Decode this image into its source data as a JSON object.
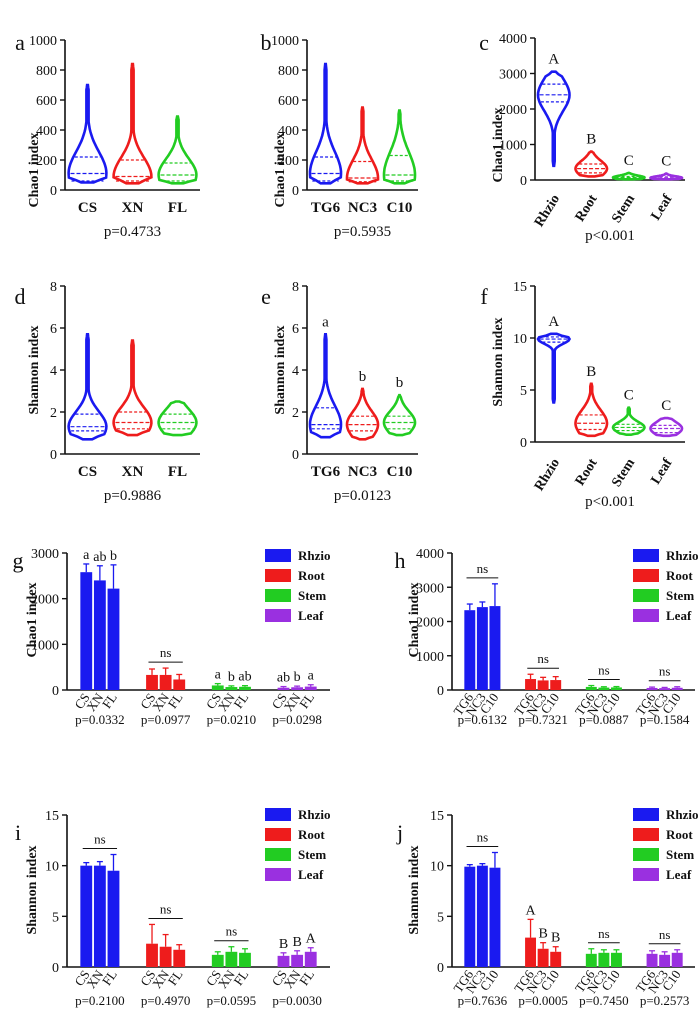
{
  "colors": {
    "blue": "#1a1af0",
    "red": "#ee1c1c",
    "green": "#22cc22",
    "purple": "#9a30e0",
    "axis": "#111111"
  },
  "chart_data": [
    {
      "id": "a",
      "panel_label": "a",
      "type": "violin",
      "ylabel": "Chao1 index",
      "ylim": [
        0,
        1000
      ],
      "yticks": [
        "0",
        "200",
        "400",
        "600",
        "800",
        "1000"
      ],
      "categories": [
        "CS",
        "XN",
        "FL"
      ],
      "colors": [
        "#1a1af0",
        "#ee1c1c",
        "#22cc22"
      ],
      "groups": [
        {
          "min": 50,
          "q1": 60,
          "median": 110,
          "q3": 220,
          "max": 700
        },
        {
          "min": 45,
          "q1": 60,
          "median": 90,
          "q3": 200,
          "max": 840
        },
        {
          "min": 45,
          "q1": 60,
          "median": 100,
          "q3": 180,
          "max": 490
        }
      ],
      "letters": [
        "",
        "",
        ""
      ],
      "pvalue": "p=0.4733",
      "rotate": false
    },
    {
      "id": "b",
      "panel_label": "b",
      "type": "violin",
      "ylabel": "Chao1 index",
      "ylim": [
        0,
        1000
      ],
      "yticks": [
        "0",
        "200",
        "400",
        "600",
        "800",
        "1000"
      ],
      "categories": [
        "TG6",
        "NC3",
        "C10"
      ],
      "colors": [
        "#1a1af0",
        "#ee1c1c",
        "#22cc22"
      ],
      "groups": [
        {
          "min": 45,
          "q1": 60,
          "median": 110,
          "q3": 220,
          "max": 840
        },
        {
          "min": 45,
          "q1": 55,
          "median": 80,
          "q3": 190,
          "max": 550
        },
        {
          "min": 45,
          "q1": 60,
          "median": 100,
          "q3": 230,
          "max": 530
        }
      ],
      "letters": [
        "",
        "",
        ""
      ],
      "pvalue": "p=0.5935",
      "rotate": false
    },
    {
      "id": "c",
      "panel_label": "c",
      "type": "violin",
      "ylabel": "Chao1 index",
      "ylim": [
        0,
        4000
      ],
      "yticks": [
        "0",
        "1000",
        "2000",
        "3000",
        "4000"
      ],
      "categories": [
        "Rhzio",
        "Root",
        "Stem",
        "Leaf"
      ],
      "colors": [
        "#1a1af0",
        "#ee1c1c",
        "#22cc22",
        "#9a30e0"
      ],
      "groups": [
        {
          "min": 400,
          "q1": 2200,
          "median": 2400,
          "q3": 2700,
          "max": 3050
        },
        {
          "min": 100,
          "q1": 200,
          "median": 320,
          "q3": 450,
          "max": 800
        },
        {
          "min": 20,
          "q1": 40,
          "median": 70,
          "q3": 100,
          "max": 200
        },
        {
          "min": 20,
          "q1": 40,
          "median": 60,
          "q3": 90,
          "max": 180
        }
      ],
      "letters": [
        "A",
        "B",
        "C",
        "C"
      ],
      "pvalue": "p<0.001",
      "rotate": true
    },
    {
      "id": "d",
      "panel_label": "d",
      "type": "violin",
      "ylabel": "Shannon index",
      "ylim": [
        0,
        8
      ],
      "yticks": [
        "0",
        "2",
        "4",
        "6",
        "8"
      ],
      "categories": [
        "CS",
        "XN",
        "FL"
      ],
      "colors": [
        "#1a1af0",
        "#ee1c1c",
        "#22cc22"
      ],
      "groups": [
        {
          "min": 0.7,
          "q1": 1.1,
          "median": 1.3,
          "q3": 1.9,
          "max": 5.7
        },
        {
          "min": 0.9,
          "q1": 1.2,
          "median": 1.5,
          "q3": 2.0,
          "max": 5.4
        },
        {
          "min": 0.9,
          "q1": 1.2,
          "median": 1.5,
          "q3": 1.9,
          "max": 2.5
        }
      ],
      "letters": [
        "",
        "",
        ""
      ],
      "pvalue": "p=0.9886",
      "rotate": false
    },
    {
      "id": "e",
      "panel_label": "e",
      "type": "violin",
      "ylabel": "Shannon index",
      "ylim": [
        0,
        8
      ],
      "yticks": [
        "0",
        "2",
        "4",
        "6",
        "8"
      ],
      "categories": [
        "TG6",
        "NC3",
        "C10"
      ],
      "colors": [
        "#1a1af0",
        "#ee1c1c",
        "#22cc22"
      ],
      "groups": [
        {
          "min": 0.8,
          "q1": 1.2,
          "median": 1.4,
          "q3": 2.2,
          "max": 5.7
        },
        {
          "min": 0.7,
          "q1": 1.1,
          "median": 1.4,
          "q3": 1.8,
          "max": 3.1
        },
        {
          "min": 0.9,
          "q1": 1.2,
          "median": 1.5,
          "q3": 1.8,
          "max": 2.8
        }
      ],
      "letters": [
        "a",
        "b",
        "b"
      ],
      "pvalue": "p=0.0123",
      "rotate": false
    },
    {
      "id": "f",
      "panel_label": "f",
      "type": "violin",
      "ylabel": "Shannon index",
      "ylim": [
        0,
        15
      ],
      "yticks": [
        "0",
        "5",
        "10",
        "15"
      ],
      "categories": [
        "Rhzio",
        "Root",
        "Stem",
        "Leaf"
      ],
      "colors": [
        "#1a1af0",
        "#ee1c1c",
        "#22cc22",
        "#9a30e0"
      ],
      "groups": [
        {
          "min": 3.8,
          "q1": 9.6,
          "median": 9.9,
          "q3": 10.1,
          "max": 10.4
        },
        {
          "min": 0.6,
          "q1": 1.2,
          "median": 1.8,
          "q3": 2.6,
          "max": 5.6
        },
        {
          "min": 0.7,
          "q1": 1.1,
          "median": 1.4,
          "q3": 1.7,
          "max": 3.3
        },
        {
          "min": 0.6,
          "q1": 0.9,
          "median": 1.3,
          "q3": 1.6,
          "max": 2.3
        }
      ],
      "letters": [
        "A",
        "B",
        "C",
        "C"
      ],
      "pvalue": "p<0.001",
      "rotate": true
    },
    {
      "id": "g",
      "panel_label": "g",
      "type": "bar",
      "ylabel": "Chao1 index",
      "ylim": [
        0,
        3000
      ],
      "yticks": [
        "0",
        "1000",
        "2000",
        "3000"
      ],
      "groups": [
        {
          "labels": [
            "CS",
            "XN",
            "FL"
          ],
          "values": [
            2580,
            2400,
            2220
          ],
          "errors": [
            180,
            320,
            520
          ],
          "letters": [
            "a",
            "ab",
            "b"
          ],
          "pvalue": "p=0.0332"
        },
        {
          "labels": [
            "CS",
            "XN",
            "FL"
          ],
          "values": [
            330,
            330,
            230
          ],
          "errors": [
            130,
            150,
            110
          ],
          "letters": [
            "ns"
          ],
          "pvalue": "p=0.0977"
        },
        {
          "labels": [
            "CS",
            "XN",
            "FL"
          ],
          "values": [
            100,
            65,
            70
          ],
          "errors": [
            40,
            25,
            25
          ],
          "letters": [
            "a",
            "b",
            "ab"
          ],
          "pvalue": "p=0.0210"
        },
        {
          "labels": [
            "CS",
            "XN",
            "FL"
          ],
          "values": [
            50,
            60,
            75
          ],
          "errors": [
            25,
            25,
            40
          ],
          "letters": [
            "ab",
            "b",
            "a"
          ],
          "pvalue": "p=0.0298"
        }
      ],
      "legend": [
        "Rhzio",
        "Root",
        "Stem",
        "Leaf"
      ],
      "legend_colors": [
        "#1a1af0",
        "#ee1c1c",
        "#22cc22",
        "#9a30e0"
      ]
    },
    {
      "id": "h",
      "panel_label": "h",
      "type": "bar",
      "ylabel": "Chao1 index",
      "ylim": [
        0,
        4000
      ],
      "yticks": [
        "0",
        "1000",
        "2000",
        "3000",
        "4000"
      ],
      "groups": [
        {
          "labels": [
            "TG6",
            "NC3",
            "C10"
          ],
          "values": [
            2330,
            2420,
            2450
          ],
          "errors": [
            180,
            150,
            650
          ],
          "letters": [
            "ns"
          ],
          "pvalue": "p=0.6132"
        },
        {
          "labels": [
            "TG6",
            "NC3",
            "C10"
          ],
          "values": [
            320,
            280,
            290
          ],
          "errors": [
            140,
            90,
            100
          ],
          "letters": [
            "ns"
          ],
          "pvalue": "p=0.7321"
        },
        {
          "labels": [
            "TG6",
            "NC3",
            "C10"
          ],
          "values": [
            90,
            70,
            75
          ],
          "errors": [
            40,
            25,
            25
          ],
          "letters": [
            "ns"
          ],
          "pvalue": "p=0.0887"
        },
        {
          "labels": [
            "TG6",
            "NC3",
            "C10"
          ],
          "values": [
            60,
            55,
            65
          ],
          "errors": [
            25,
            20,
            30
          ],
          "letters": [
            "ns"
          ],
          "pvalue": "p=0.1584"
        }
      ],
      "legend": [
        "Rhzio",
        "Root",
        "Stem",
        "Leaf"
      ],
      "legend_colors": [
        "#1a1af0",
        "#ee1c1c",
        "#22cc22",
        "#9a30e0"
      ]
    },
    {
      "id": "i",
      "panel_label": "i",
      "type": "bar",
      "ylabel": "Shannon index",
      "ylim": [
        0,
        15
      ],
      "yticks": [
        "0",
        "5",
        "10",
        "15"
      ],
      "groups": [
        {
          "labels": [
            "CS",
            "XN",
            "FL"
          ],
          "values": [
            10.0,
            10.0,
            9.5
          ],
          "errors": [
            0.3,
            0.4,
            1.6
          ],
          "letters": [
            "ns"
          ],
          "pvalue": "p=0.2100"
        },
        {
          "labels": [
            "CS",
            "XN",
            "FL"
          ],
          "values": [
            2.3,
            2.0,
            1.7
          ],
          "errors": [
            1.9,
            1.2,
            0.5
          ],
          "letters": [
            "ns"
          ],
          "pvalue": "p=0.4970"
        },
        {
          "labels": [
            "CS",
            "XN",
            "FL"
          ],
          "values": [
            1.2,
            1.5,
            1.4
          ],
          "errors": [
            0.3,
            0.5,
            0.4
          ],
          "letters": [
            "ns"
          ],
          "pvalue": "p=0.0595"
        },
        {
          "labels": [
            "CS",
            "XN",
            "FL"
          ],
          "values": [
            1.1,
            1.2,
            1.5
          ],
          "errors": [
            0.3,
            0.4,
            0.4
          ],
          "letters": [
            "B",
            "B",
            "A"
          ],
          "pvalue": "p=0.0030"
        }
      ],
      "legend": [
        "Rhzio",
        "Root",
        "Stem",
        "Leaf"
      ],
      "legend_colors": [
        "#1a1af0",
        "#ee1c1c",
        "#22cc22",
        "#9a30e0"
      ]
    },
    {
      "id": "j",
      "panel_label": "j",
      "type": "bar",
      "ylabel": "Shannon index",
      "ylim": [
        0,
        15
      ],
      "yticks": [
        "0",
        "5",
        "10",
        "15"
      ],
      "groups": [
        {
          "labels": [
            "TG6",
            "NC3",
            "C10"
          ],
          "values": [
            9.9,
            10.0,
            9.8
          ],
          "errors": [
            0.2,
            0.2,
            1.5
          ],
          "letters": [
            "ns"
          ],
          "pvalue": "p=0.7636"
        },
        {
          "labels": [
            "TG6",
            "NC3",
            "C10"
          ],
          "values": [
            2.9,
            1.8,
            1.5
          ],
          "errors": [
            1.8,
            0.6,
            0.5
          ],
          "letters": [
            "A",
            "B",
            "B"
          ],
          "pvalue": "p=0.0005"
        },
        {
          "labels": [
            "TG6",
            "NC3",
            "C10"
          ],
          "values": [
            1.3,
            1.4,
            1.4
          ],
          "errors": [
            0.5,
            0.3,
            0.3
          ],
          "letters": [
            "ns"
          ],
          "pvalue": "p=0.7450"
        },
        {
          "labels": [
            "TG6",
            "NC3",
            "C10"
          ],
          "values": [
            1.3,
            1.2,
            1.4
          ],
          "errors": [
            0.3,
            0.3,
            0.3
          ],
          "letters": [
            "ns"
          ],
          "pvalue": "p=0.2573"
        }
      ],
      "legend": [
        "Rhzio",
        "Root",
        "Stem",
        "Leaf"
      ],
      "legend_colors": [
        "#1a1af0",
        "#ee1c1c",
        "#22cc22",
        "#9a30e0"
      ]
    }
  ]
}
